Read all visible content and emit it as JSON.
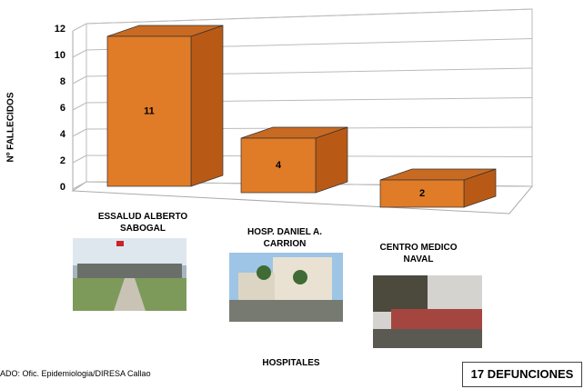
{
  "chart_data": {
    "type": "bar3d",
    "categories": [
      "ESSALUD ALBERTO SABOGAL",
      "HOSP. DANIEL A. CARRION",
      "CENTRO MEDICO NAVAL"
    ],
    "values": [
      11,
      4,
      2
    ],
    "color": "#e07b28",
    "ylim": [
      0,
      12
    ],
    "yticks": [
      0,
      2,
      4,
      6,
      8,
      10,
      12
    ],
    "grid": true,
    "y_label": "Nº FALLECIDOS",
    "x_label": "HOSPITALES",
    "source": "ADO: Ofic. Epidemiologia/DIRESA Callao",
    "total_box": "17 DEFUNCIONES"
  }
}
